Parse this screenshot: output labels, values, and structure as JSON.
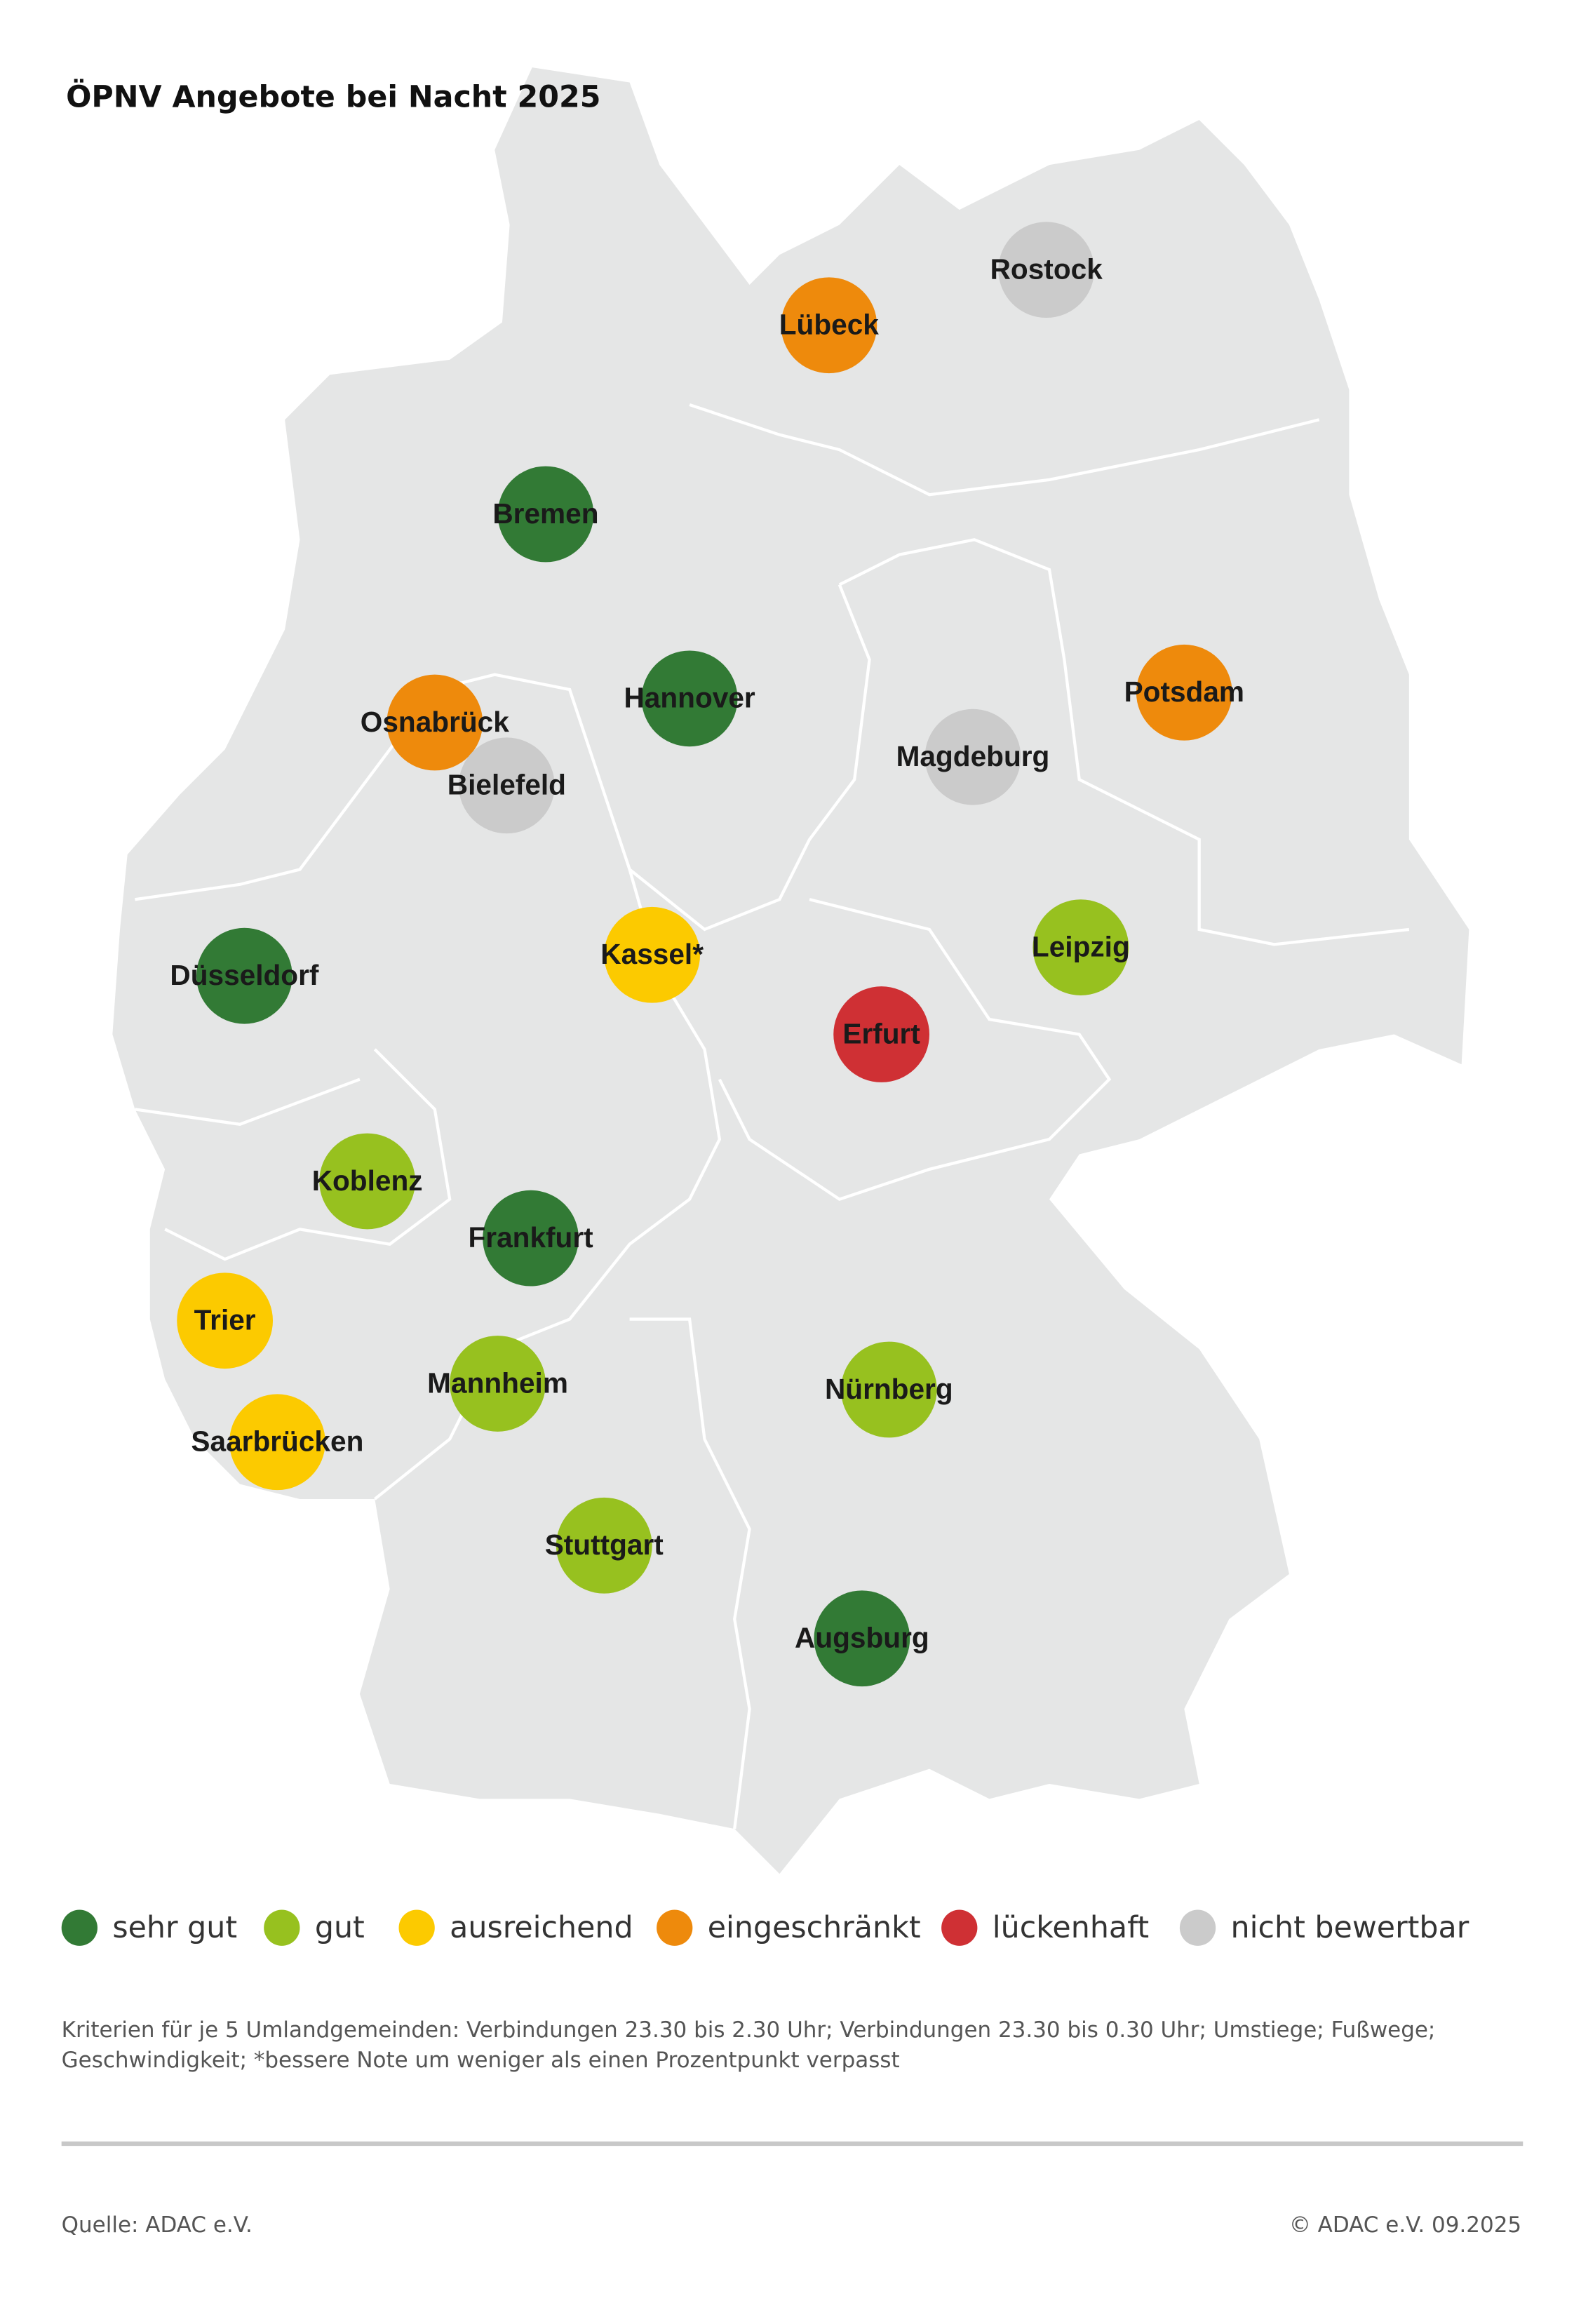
{
  "title": "ÖPNV Angebote bei Nacht 2025",
  "legend": [
    {
      "label": "sehr gut",
      "color": "#327a35"
    },
    {
      "label": "gut",
      "color": "#97c11f"
    },
    {
      "label": "ausreichend",
      "color": "#fcca00"
    },
    {
      "label": "eingeschränkt",
      "color": "#ee8a0c"
    },
    {
      "label": "lückenhaft",
      "color": "#cf3034"
    },
    {
      "label": "nicht bewertbar",
      "color": "#cbcbcb"
    }
  ],
  "cities": [
    {
      "label": "Rostock",
      "rating": "nicht bewertbar"
    },
    {
      "label": "Lübeck",
      "rating": "eingeschränkt"
    },
    {
      "label": "Bremen",
      "rating": "sehr gut"
    },
    {
      "label": "Hannover",
      "rating": "sehr gut"
    },
    {
      "label": "Osnabrück",
      "rating": "eingeschränkt"
    },
    {
      "label": "Bielefeld",
      "rating": "nicht bewertbar"
    },
    {
      "label": "Potsdam",
      "rating": "eingeschränkt"
    },
    {
      "label": "Magdeburg",
      "rating": "nicht bewertbar"
    },
    {
      "label": "Düsseldorf",
      "rating": "sehr gut"
    },
    {
      "label": "Kassel*",
      "rating": "ausreichend"
    },
    {
      "label": "Leipzig",
      "rating": "gut"
    },
    {
      "label": "Erfurt",
      "rating": "lückenhaft"
    },
    {
      "label": "Koblenz",
      "rating": "gut"
    },
    {
      "label": "Frankfurt",
      "rating": "sehr gut"
    },
    {
      "label": "Trier",
      "rating": "ausreichend"
    },
    {
      "label": "Mannheim",
      "rating": "gut"
    },
    {
      "label": "Nürnberg",
      "rating": "gut"
    },
    {
      "label": "Saarbrücken",
      "rating": "ausreichend"
    },
    {
      "label": "Stuttgart",
      "rating": "gut"
    },
    {
      "label": "Augsburg",
      "rating": "sehr gut"
    }
  ],
  "note": [
    "Kriterien für je 5 Umlandgemeinden: Verbindungen 23.30 bis 2.30 Uhr; Verbindungen 23.30 bis 0.30 Uhr; Umstiege; Fußwege;",
    "Geschwindigkeit; *bessere Note um weniger als einen Prozentpunkt verpasst"
  ],
  "source": "Quelle: ADAC e.V.",
  "copyright": "© ADAC e.V. 09.2025"
}
